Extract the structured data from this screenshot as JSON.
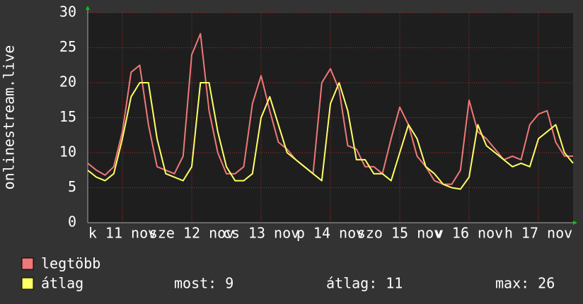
{
  "chart_data": {
    "type": "line",
    "ylabel": "onlinestream.live",
    "xlim": [
      0,
      168
    ],
    "xticks": [
      {
        "value": 12,
        "label": "k 11 nov"
      },
      {
        "value": 36,
        "label": "sze 12 nov"
      },
      {
        "value": 60,
        "label": "cs 13 nov"
      },
      {
        "value": 84,
        "label": "p 14 nov"
      },
      {
        "value": 108,
        "label": "szo 15 nov"
      },
      {
        "value": 132,
        "label": "v 16 nov"
      },
      {
        "value": 156,
        "label": "h 17 nov"
      }
    ],
    "ylim": [
      0,
      30
    ],
    "yticks": [
      0,
      5,
      10,
      15,
      20,
      25,
      30
    ],
    "grid": true,
    "x": [
      0,
      3,
      6,
      9,
      12,
      15,
      18,
      21,
      24,
      27,
      30,
      33,
      36,
      39,
      42,
      45,
      48,
      51,
      54,
      57,
      60,
      63,
      66,
      69,
      72,
      75,
      78,
      81,
      84,
      87,
      90,
      93,
      96,
      99,
      102,
      105,
      108,
      111,
      114,
      117,
      120,
      123,
      126,
      129,
      132,
      135,
      138,
      141,
      144,
      147,
      150,
      153,
      156,
      159,
      162,
      165,
      168
    ],
    "series": [
      {
        "name": "legtöbb",
        "color": "#f07878",
        "values": [
          8.5,
          7.5,
          6.8,
          8,
          13,
          21.5,
          22.5,
          14,
          8,
          7.5,
          7,
          9.5,
          24,
          27,
          16,
          10,
          7,
          7,
          8,
          17,
          21,
          16,
          11.5,
          10.5,
          9,
          8,
          7,
          20,
          22,
          19,
          11,
          10.5,
          8,
          8,
          7,
          12,
          16.5,
          14,
          9.5,
          8,
          6,
          5.5,
          5.5,
          7.5,
          17.5,
          13,
          12,
          10.5,
          9,
          9.5,
          9,
          14,
          15.5,
          16,
          11.5,
          9.5,
          9.5
        ]
      },
      {
        "name": "átlag",
        "color": "#ffff66",
        "values": [
          7.5,
          6.5,
          6,
          7,
          12,
          18,
          20,
          20,
          12,
          7,
          6.5,
          6,
          8,
          20,
          20,
          13,
          8,
          6,
          6,
          7,
          15,
          18,
          14,
          10,
          9,
          8,
          7,
          6,
          17,
          20,
          16,
          9,
          9,
          7,
          7,
          6,
          10,
          14,
          12,
          8,
          7,
          5.5,
          5,
          4.8,
          6.5,
          14,
          11,
          10,
          9,
          8,
          8.5,
          8,
          12,
          13,
          14,
          10,
          8.5
        ]
      }
    ],
    "stats": [
      {
        "label": "most:",
        "value": 9
      },
      {
        "label": "átlag:",
        "value": 11
      },
      {
        "label": "max:",
        "value": 26
      }
    ]
  }
}
